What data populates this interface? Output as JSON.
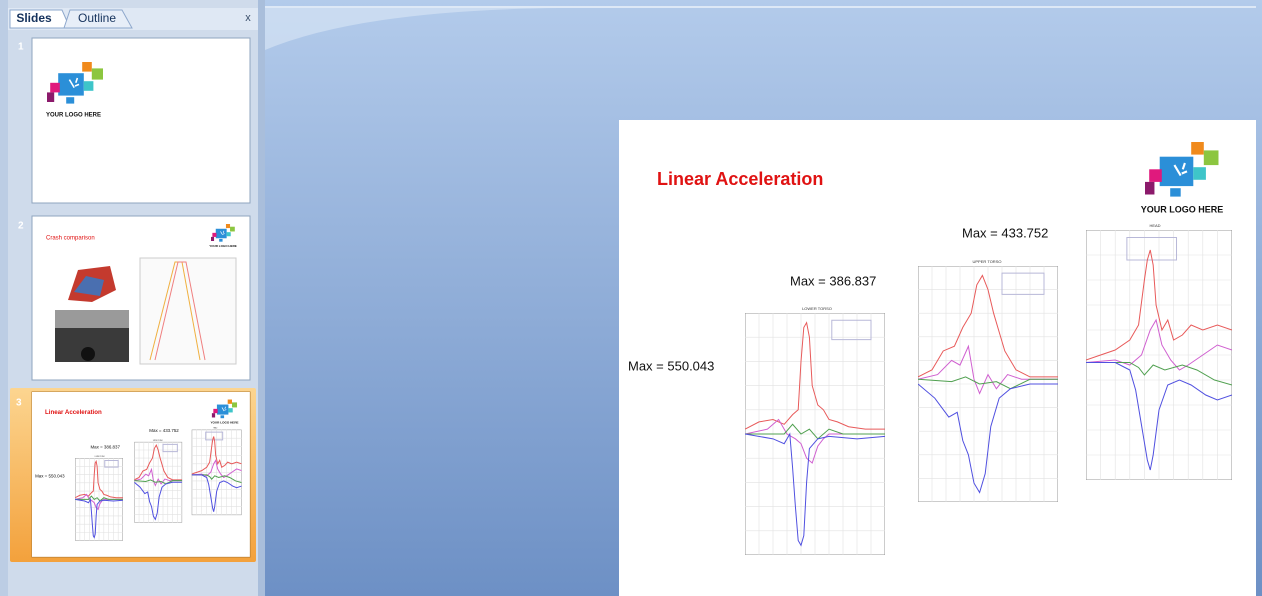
{
  "panel": {
    "tabs": [
      "Slides",
      "Outline"
    ],
    "close": "x",
    "slides": [
      {
        "number": "1",
        "logo_text": "YOUR LOGO HERE"
      },
      {
        "number": "2",
        "title": "Crash comparison",
        "logo_text": "YOUR LOGO HERE"
      },
      {
        "number": "3"
      }
    ]
  },
  "slide": {
    "title": "Linear Acceleration",
    "logo_text": "YOUR LOGO HERE",
    "max_labels": [
      "Max = 550.043",
      "Max = 386.837",
      "Max = 433.752"
    ],
    "plot_titles": [
      "LOWER TORSO",
      "UPPER TORSO",
      "HEAD"
    ]
  }
}
